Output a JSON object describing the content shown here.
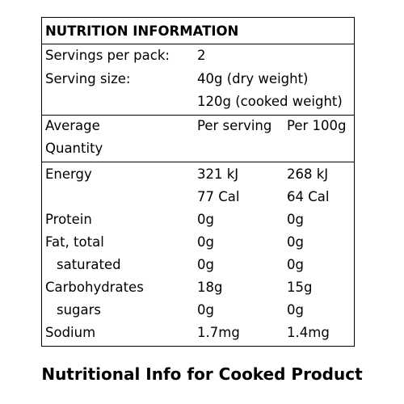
{
  "label": {
    "title": "NUTRITION INFORMATION",
    "servings_label": "Servings per pack:",
    "servings_value": "2",
    "serving_size_label": "Serving size:",
    "serving_size_dry": "40g (dry weight)",
    "serving_size_cooked": "120g (cooked weight)",
    "header": {
      "avg_line1": "Average",
      "avg_line2": "Quantity",
      "per_serving": "Per serving",
      "per_100g": "Per 100g"
    },
    "rows": [
      {
        "name": "Energy",
        "serving": "321 kJ",
        "per100": "268 kJ"
      },
      {
        "name": "",
        "serving": "77 Cal",
        "per100": "64 Cal"
      },
      {
        "name": "Protein",
        "serving": "0g",
        "per100": "0g"
      },
      {
        "name": "Fat, total",
        "serving": "0g",
        "per100": "0g"
      },
      {
        "name": "saturated",
        "serving": "0g",
        "per100": "0g"
      },
      {
        "name": "Carbohydrates",
        "serving": "18g",
        "per100": "15g"
      },
      {
        "name": "sugars",
        "serving": "0g",
        "per100": "0g"
      },
      {
        "name": "Sodium",
        "serving": "1.7mg",
        "per100": "1.4mg"
      }
    ]
  },
  "caption": "Nutritional Info for Cooked Product"
}
